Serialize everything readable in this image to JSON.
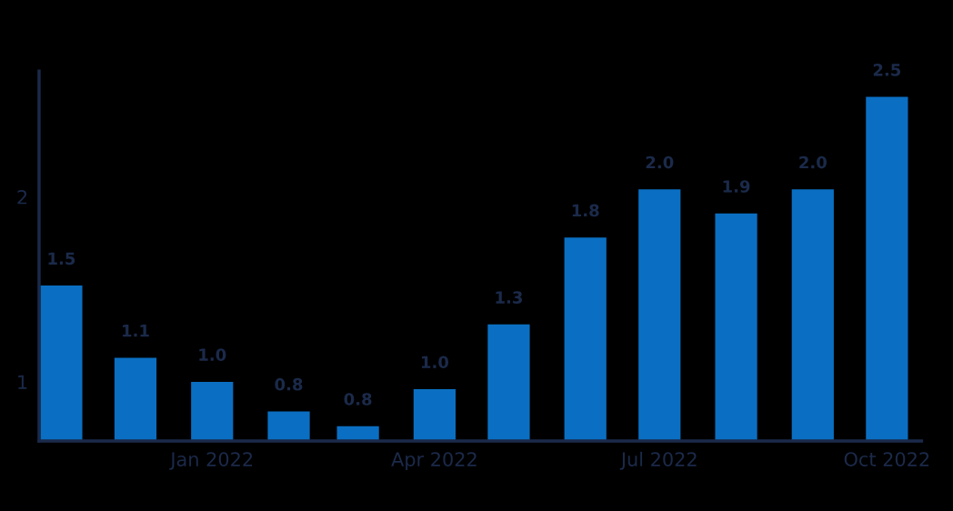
{
  "chart_data": {
    "type": "bar",
    "x": [
      "2021-11-01",
      "2021-12-01",
      "2022-01-01",
      "2022-02-01",
      "2022-03-01",
      "2022-04-01",
      "2022-05-01",
      "2022-06-01",
      "2022-07-01",
      "2022-08-01",
      "2022-09-01",
      "2022-10-01"
    ],
    "values": [
      1.52,
      1.13,
      1.0,
      0.84,
      0.76,
      0.96,
      1.31,
      1.78,
      2.04,
      1.91,
      2.04,
      2.54
    ],
    "value_labels": [
      "1.5",
      "1.1",
      "1.0",
      "0.8",
      "0.8",
      "1.0",
      "1.3",
      "1.8",
      "2.0",
      "1.9",
      "2.0",
      "2.5"
    ],
    "color": "#0a6fc2",
    "xlim": [
      "2021-10-23",
      "2022-10-15"
    ],
    "xticks": [
      {
        "value": "2022-01-01",
        "label": "Jan 2022"
      },
      {
        "value": "2022-04-01",
        "label": "Apr 2022"
      },
      {
        "value": "2022-07-01",
        "label": "Jul 2022"
      },
      {
        "value": "2022-10-01",
        "label": "Oct 2022"
      }
    ],
    "ylim": [
      0.68,
      2.68
    ],
    "yticks": [
      1,
      2
    ],
    "grid": false
  }
}
